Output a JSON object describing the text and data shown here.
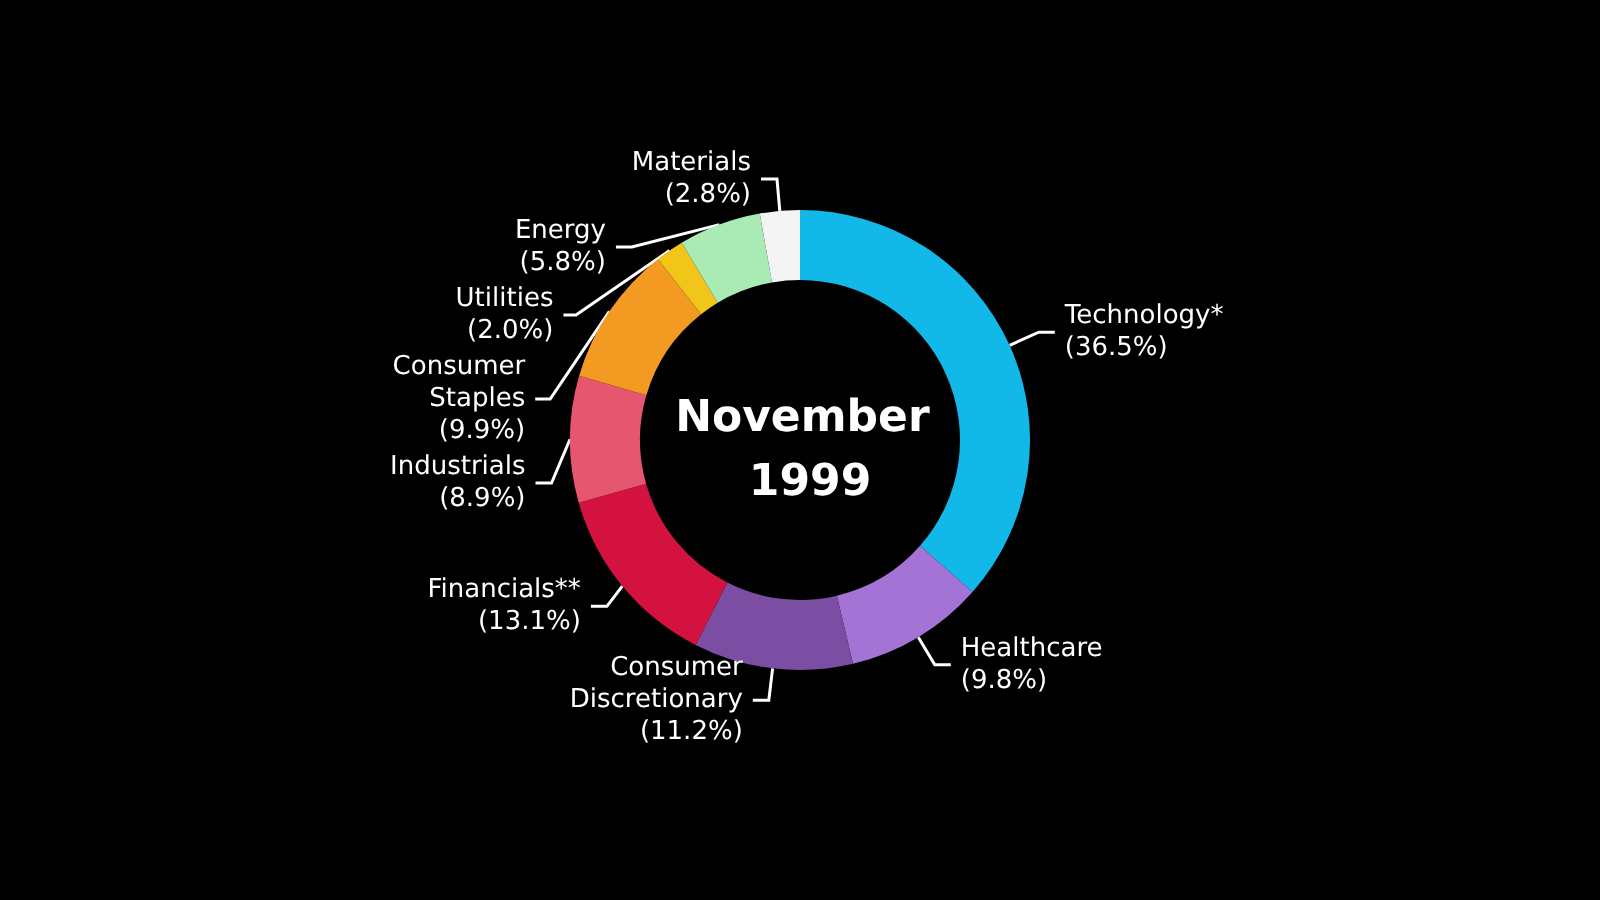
{
  "chart_data": {
    "type": "donut",
    "title": "November 1999",
    "categories": [
      "Technology*",
      "Healthcare",
      "Consumer Discretionary",
      "Financials**",
      "Industrials",
      "Consumer Staples",
      "Utilities",
      "Energy",
      "Materials"
    ],
    "values": [
      36.5,
      9.8,
      11.2,
      13.1,
      8.9,
      9.9,
      2.0,
      5.8,
      2.8
    ],
    "value_labels": [
      "(36.5%)",
      "(9.8%)",
      "(11.2%)",
      "(13.1%)",
      "(8.9%)",
      "(9.9%)",
      "(2.0%)",
      "(5.8%)",
      "(2.8%)"
    ],
    "colors": [
      "#12b8e8",
      "#a374d6",
      "#7b4ea3",
      "#d3123f",
      "#e7566f",
      "#f39a22",
      "#f2c51a",
      "#a9eab5",
      "#f4f4f4"
    ],
    "legend": false
  }
}
